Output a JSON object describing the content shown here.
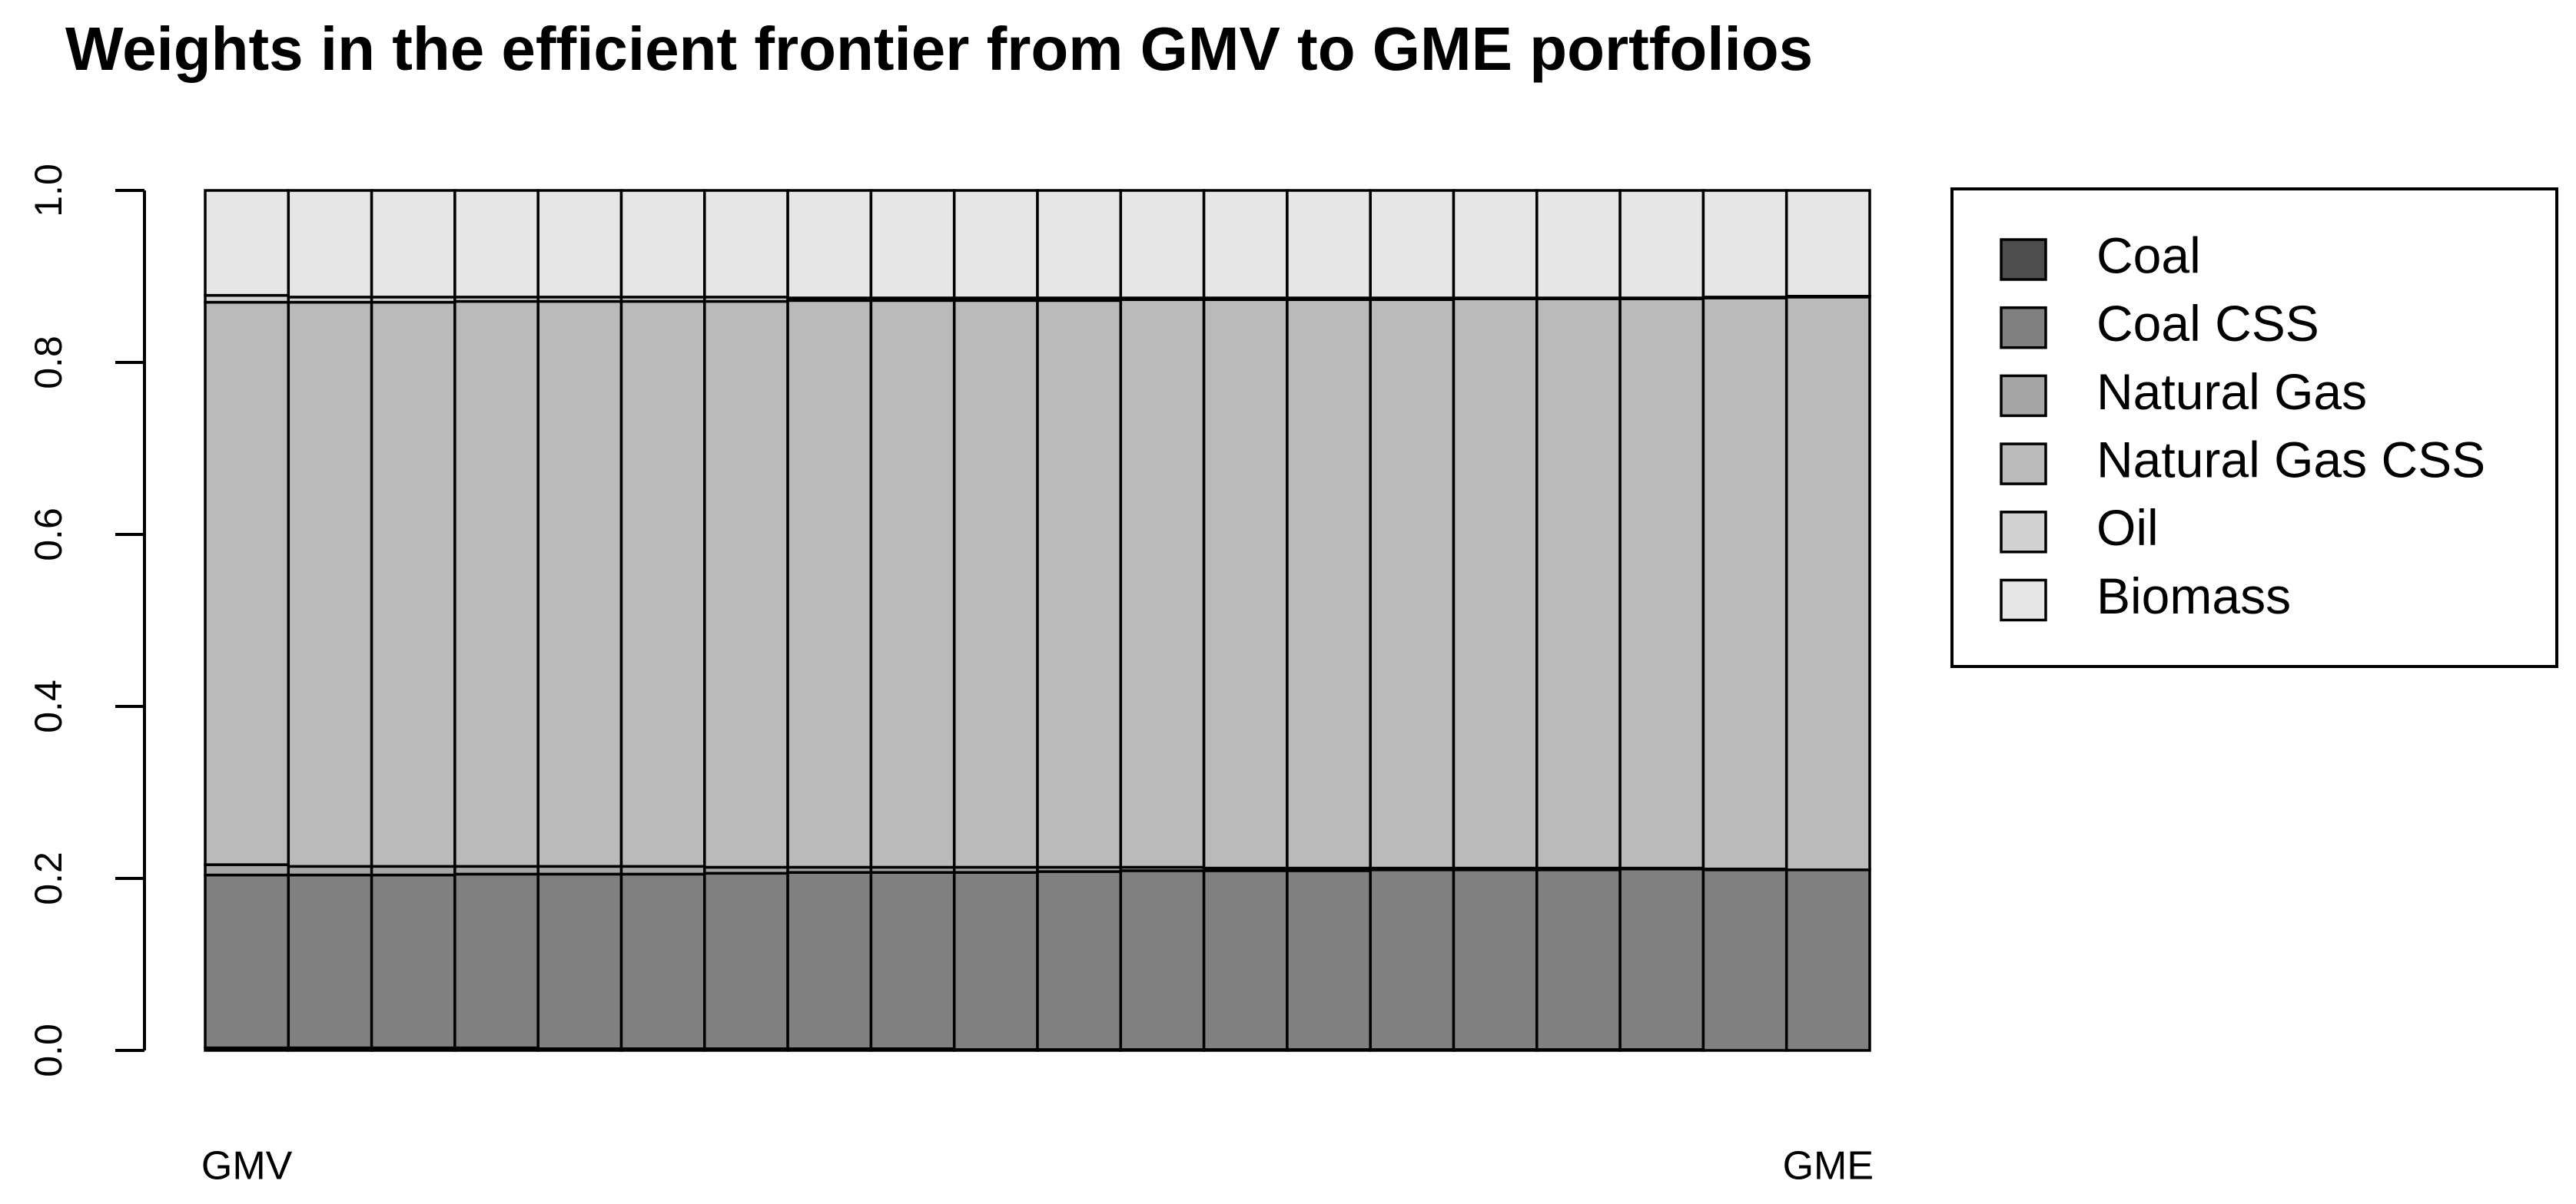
{
  "chart_data": {
    "type": "stacked_bar",
    "title": "Weights in the efficient frontier from GMV to GME portfolios",
    "categories": [
      "GMV",
      null,
      null,
      null,
      null,
      null,
      null,
      null,
      null,
      null,
      null,
      null,
      null,
      null,
      null,
      null,
      null,
      null,
      null,
      "GME"
    ],
    "series": [
      {
        "name": "Coal",
        "color": "#4d4d4d",
        "values": [
          0.003,
          0.003,
          0.003,
          0.003,
          0.002,
          0.002,
          0.002,
          0.002,
          0.002,
          0.001,
          0.001,
          0.001,
          0.001,
          0.001,
          0.001,
          0.001,
          0.001,
          0.001,
          0,
          0
        ]
      },
      {
        "name": "Coal CSS",
        "color": "#808080",
        "values": [
          0.201,
          0.201,
          0.201,
          0.202,
          0.203,
          0.203,
          0.204,
          0.205,
          0.205,
          0.206,
          0.207,
          0.208,
          0.208,
          0.208,
          0.209,
          0.209,
          0.209,
          0.21,
          0.21,
          0.21
        ]
      },
      {
        "name": "Natural Gas",
        "color": "#a6a6a6",
        "values": [
          0.012,
          0.01,
          0.01,
          0.009,
          0.009,
          0.009,
          0.007,
          0.006,
          0.006,
          0.006,
          0.005,
          0.004,
          0.003,
          0.003,
          0.002,
          0.002,
          0.002,
          0.001,
          0.001,
          0
        ]
      },
      {
        "name": "Natural Gas CSS",
        "color": "#bababa",
        "values": [
          0.654,
          0.656,
          0.656,
          0.657,
          0.657,
          0.657,
          0.658,
          0.659,
          0.659,
          0.659,
          0.659,
          0.66,
          0.661,
          0.661,
          0.661,
          0.662,
          0.662,
          0.662,
          0.664,
          0.666
        ]
      },
      {
        "name": "Oil",
        "color": "#d2d2d2",
        "values": [
          0.008,
          0.006,
          0.006,
          0.005,
          0.005,
          0.005,
          0.005,
          0.003,
          0.003,
          0.003,
          0.003,
          0.002,
          0.002,
          0.002,
          0.002,
          0.001,
          0.001,
          0.001,
          0.001,
          0.001
        ]
      },
      {
        "name": "Biomass",
        "color": "#e6e6e6",
        "values": [
          0.122,
          0.124,
          0.124,
          0.124,
          0.124,
          0.124,
          0.124,
          0.125,
          0.125,
          0.125,
          0.125,
          0.125,
          0.125,
          0.125,
          0.125,
          0.125,
          0.125,
          0.125,
          0.124,
          0.123
        ]
      }
    ],
    "ylim": [
      0,
      1
    ],
    "yticks": [
      {
        "value": 0,
        "label": "0.0"
      },
      {
        "value": 0.2,
        "label": "0.2"
      },
      {
        "value": 0.4,
        "label": "0.4"
      },
      {
        "value": 0.6,
        "label": "0.6"
      },
      {
        "value": 0.8,
        "label": "0.8"
      },
      {
        "value": 1,
        "label": "1.0"
      }
    ],
    "legend": "right"
  }
}
